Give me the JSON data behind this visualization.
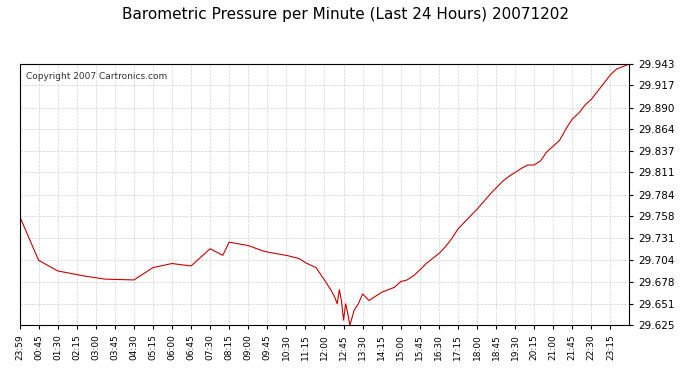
{
  "title": "Barometric Pressure per Minute (Last 24 Hours) 20071202",
  "copyright_text": "Copyright 2007 Cartronics.com",
  "line_color": "#cc0000",
  "background_color": "#ffffff",
  "plot_bg_color": "#ffffff",
  "grid_color": "#cccccc",
  "ylim": [
    29.625,
    29.943
  ],
  "yticks": [
    29.625,
    29.651,
    29.678,
    29.704,
    29.731,
    29.758,
    29.784,
    29.811,
    29.837,
    29.864,
    29.89,
    29.917,
    29.943
  ],
  "xtick_positions": [
    0,
    45,
    90,
    135,
    180,
    225,
    270,
    315,
    360,
    405,
    450,
    495,
    540,
    585,
    630,
    675,
    720,
    765,
    810,
    855,
    900,
    945,
    990,
    1035,
    1080,
    1125,
    1170,
    1215,
    1260,
    1305,
    1350,
    1395
  ],
  "xtick_labels": [
    "23:59",
    "00:45",
    "01:30",
    "02:15",
    "03:00",
    "03:45",
    "04:30",
    "05:15",
    "06:00",
    "06:45",
    "07:30",
    "08:15",
    "09:00",
    "09:45",
    "10:30",
    "11:15",
    "12:00",
    "12:45",
    "13:30",
    "14:15",
    "15:00",
    "15:45",
    "16:30",
    "17:15",
    "18:00",
    "18:45",
    "19:30",
    "20:15",
    "21:00",
    "21:45",
    "22:30",
    "23:15"
  ],
  "key_points_x": [
    0,
    45,
    90,
    150,
    200,
    270,
    315,
    360,
    405,
    450,
    480,
    495,
    540,
    570,
    585,
    630,
    660,
    675,
    700,
    720,
    735,
    745,
    750,
    755,
    760,
    765,
    770,
    775,
    780,
    790,
    800,
    810,
    825,
    840,
    855,
    870,
    885,
    900,
    915,
    930,
    945,
    960,
    975,
    990,
    1005,
    1020,
    1035,
    1050,
    1065,
    1080,
    1095,
    1110,
    1125,
    1140,
    1155,
    1170,
    1185,
    1200,
    1215,
    1230,
    1245,
    1260,
    1275,
    1290,
    1305,
    1320,
    1335,
    1350,
    1365,
    1380,
    1395,
    1410,
    1425,
    1440
  ],
  "key_points_y": [
    29.758,
    29.704,
    29.691,
    29.685,
    29.681,
    29.68,
    29.695,
    29.7,
    29.697,
    29.718,
    29.71,
    29.726,
    29.722,
    29.716,
    29.714,
    29.71,
    29.706,
    29.701,
    29.695,
    29.68,
    29.668,
    29.658,
    29.651,
    29.668,
    29.655,
    29.631,
    29.651,
    29.639,
    29.625,
    29.643,
    29.651,
    29.663,
    29.655,
    29.66,
    29.665,
    29.668,
    29.671,
    29.678,
    29.68,
    29.685,
    29.692,
    29.7,
    29.706,
    29.712,
    29.72,
    29.73,
    29.742,
    29.75,
    29.758,
    29.766,
    29.775,
    29.784,
    29.792,
    29.8,
    29.806,
    29.811,
    29.816,
    29.82,
    29.82,
    29.825,
    29.836,
    29.843,
    29.85,
    29.864,
    29.876,
    29.883,
    29.893,
    29.9,
    29.91,
    29.92,
    29.93,
    29.937,
    29.94,
    29.943
  ]
}
